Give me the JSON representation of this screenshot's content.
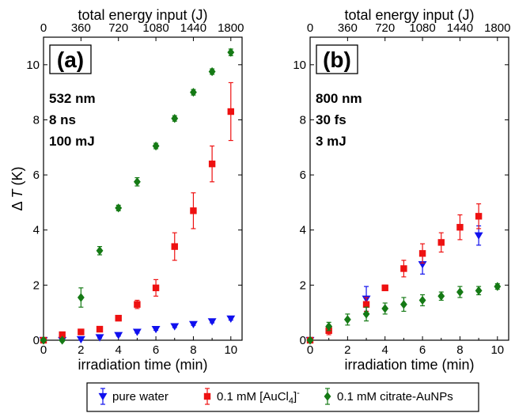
{
  "colors": {
    "pure_water": "#1010ee",
    "aucl4": "#ee1111",
    "aunps": "#157a15",
    "axis": "#000000"
  },
  "legend": {
    "items": [
      {
        "label": "pure water",
        "marker": "triangle-down",
        "series_key": "pure_water"
      },
      {
        "label": "0.1 mM [AuCl",
        "sub": "4",
        "sup": "-",
        "marker": "square",
        "series_key": "aucl4"
      },
      {
        "label": "0.1 mM citrate-AuNPs",
        "marker": "diamond",
        "series_key": "aunps"
      }
    ],
    "placement": "bottom-center"
  },
  "chart_data": [
    {
      "type": "scatter",
      "panel_label": "(a)",
      "conditions": [
        "532 nm",
        "8 ns",
        "100 mJ"
      ],
      "xlabel": "irradiation time (min)",
      "ylabel_prefix": "Δ",
      "ylabel_var": "T",
      "ylabel_unit": " (K)",
      "top_xlabel": "total energy input (J)",
      "xlim": [
        0,
        10.6
      ],
      "ylim": [
        0,
        11
      ],
      "xticks": [
        0,
        2,
        4,
        6,
        8,
        10
      ],
      "yticks": [
        0,
        2,
        4,
        6,
        8,
        10
      ],
      "top_ticks": [
        {
          "x": 0,
          "label": "0"
        },
        {
          "x": 2,
          "label": "360"
        },
        {
          "x": 4,
          "label": "720"
        },
        {
          "x": 6,
          "label": "1080"
        },
        {
          "x": 8,
          "label": "1440"
        },
        {
          "x": 10,
          "label": "1800"
        }
      ],
      "series": [
        {
          "key": "pure_water",
          "marker": "triangle-down",
          "x": [
            0,
            1,
            2,
            3,
            4,
            5,
            6,
            7,
            8,
            9,
            10
          ],
          "y": [
            0,
            0.0,
            0.03,
            0.1,
            0.18,
            0.3,
            0.4,
            0.5,
            0.58,
            0.68,
            0.78
          ],
          "err": [
            0,
            0.03,
            0.03,
            0.03,
            0.03,
            0.04,
            0.04,
            0.04,
            0.04,
            0.05,
            0.05
          ]
        },
        {
          "key": "aucl4",
          "marker": "square",
          "x": [
            0,
            1,
            2,
            3,
            4,
            5,
            6,
            7,
            8,
            9,
            10
          ],
          "y": [
            0,
            0.2,
            0.3,
            0.4,
            0.8,
            1.3,
            1.9,
            3.4,
            4.7,
            6.4,
            8.3
          ],
          "err": [
            0,
            0.05,
            0.05,
            0.06,
            0.08,
            0.15,
            0.3,
            0.5,
            0.65,
            0.65,
            1.05
          ]
        },
        {
          "key": "aunps",
          "marker": "diamond",
          "x": [
            0,
            1,
            2,
            3,
            4,
            5,
            6,
            7,
            8,
            9,
            10
          ],
          "y": [
            0,
            0.0,
            1.55,
            3.25,
            4.8,
            5.75,
            7.05,
            8.05,
            9.0,
            9.75,
            10.45
          ],
          "err": [
            0,
            0.05,
            0.35,
            0.15,
            0.1,
            0.15,
            0.1,
            0.1,
            0.1,
            0.1,
            0.12
          ]
        }
      ]
    },
    {
      "type": "scatter",
      "panel_label": "(b)",
      "conditions": [
        "800 nm",
        "30 fs",
        "3 mJ"
      ],
      "xlabel": "irradiation time (min)",
      "top_xlabel": "total energy input (J)",
      "xlim": [
        0,
        10.6
      ],
      "ylim": [
        0,
        11
      ],
      "xticks": [
        0,
        2,
        4,
        6,
        8,
        10
      ],
      "yticks": [
        0,
        2,
        4,
        6,
        8,
        10
      ],
      "top_ticks": [
        {
          "x": 0,
          "label": "0"
        },
        {
          "x": 2,
          "label": "360"
        },
        {
          "x": 4,
          "label": "720"
        },
        {
          "x": 6,
          "label": "1080"
        },
        {
          "x": 8,
          "label": "1440"
        },
        {
          "x": 10,
          "label": "1800"
        }
      ],
      "series": [
        {
          "key": "pure_water",
          "marker": "triangle-down",
          "x": [
            0,
            3,
            6,
            9
          ],
          "y": [
            0,
            1.5,
            2.75,
            3.8
          ],
          "err": [
            0,
            0.45,
            0.35,
            0.35
          ]
        },
        {
          "key": "aucl4",
          "marker": "square",
          "x": [
            0,
            1,
            3,
            4,
            5,
            6,
            7,
            8,
            9
          ],
          "y": [
            0,
            0.35,
            1.3,
            1.9,
            2.6,
            3.15,
            3.55,
            4.1,
            4.5
          ],
          "err": [
            0,
            0.15,
            0.25,
            0.1,
            0.3,
            0.35,
            0.35,
            0.45,
            0.45
          ]
        },
        {
          "key": "aunps",
          "marker": "diamond",
          "x": [
            0,
            1,
            2,
            3,
            4,
            5,
            6,
            7,
            8,
            9,
            10
          ],
          "y": [
            0,
            0.5,
            0.75,
            0.95,
            1.15,
            1.3,
            1.45,
            1.6,
            1.75,
            1.8,
            1.95
          ],
          "err": [
            0,
            0.15,
            0.2,
            0.25,
            0.2,
            0.25,
            0.2,
            0.15,
            0.2,
            0.15,
            0.1
          ]
        }
      ]
    }
  ]
}
